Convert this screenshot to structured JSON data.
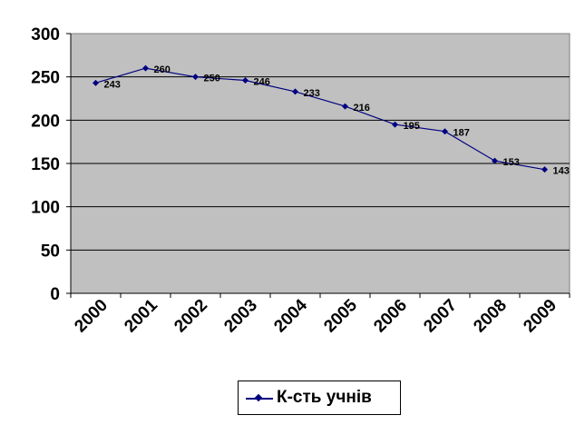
{
  "chart_data": {
    "type": "line",
    "categories": [
      "2000",
      "2001",
      "2002",
      "2003",
      "2004",
      "2005",
      "2006",
      "2007",
      "2008",
      "2009"
    ],
    "series": [
      {
        "name": "К-сть учнів",
        "values": [
          243,
          260,
          250,
          246,
          233,
          216,
          195,
          187,
          153,
          143
        ]
      }
    ],
    "data_labels": [
      "243",
      "260",
      "250",
      "246",
      "233",
      "216",
      "195",
      "187",
      "153",
      "143"
    ],
    "yticks": [
      "0",
      "50",
      "100",
      "150",
      "200",
      "250",
      "300"
    ],
    "ylim": [
      0,
      300
    ],
    "grid": true,
    "legend_position": "bottom",
    "colors": {
      "series": "#000080",
      "plot_background": "#c0c0c0",
      "grid": "#000000"
    }
  }
}
